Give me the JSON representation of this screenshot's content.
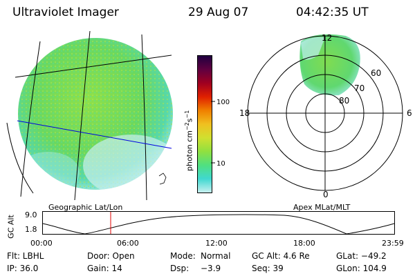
{
  "header": {
    "instrument": "Ultraviolet Imager",
    "date": "29 Aug 07",
    "time": "04:42:35 UT"
  },
  "colorbar": {
    "unit_label": "photon cm",
    "unit_exp1": "−2",
    "unit_mid": "s",
    "unit_exp2": "−1",
    "ticks": [
      "100",
      "10"
    ],
    "colors": [
      "#c8f0f0",
      "#40d8d0",
      "#50e080",
      "#90e040",
      "#d0e030",
      "#f0c020",
      "#f08000",
      "#e02000",
      "#a00020",
      "#600040",
      "#200040"
    ]
  },
  "left_panel": {
    "label": "Geographic Lat/Lon"
  },
  "right_panel": {
    "label": "Apex MLat/MLT",
    "mlt": {
      "top": "12",
      "left": "18",
      "right": "6",
      "bottom": "0"
    },
    "mlat": [
      "60",
      "70",
      "80"
    ]
  },
  "altitude_plot": {
    "ylabel": "GC Alt",
    "y_ticks": [
      "9.0",
      "1.8"
    ],
    "x_ticks": [
      "00:00",
      "06:00",
      "12:00",
      "18:00",
      "23:59"
    ],
    "current_time_marker_color": "#e00000"
  },
  "info": {
    "filter": "Flt: LBHL",
    "ip": "IP: 36.0",
    "door": "Door: Open",
    "gain": "Gain: 14",
    "mode_label": "Mode:",
    "mode_value": "Normal",
    "dsp_label": "Dsp:",
    "dsp_value": "−3.9",
    "gc_alt": "GC Alt: 4.6 Re",
    "seq": "Seq: 39",
    "glat": "GLat: −49.2",
    "glon": "GLon: 104.9"
  }
}
